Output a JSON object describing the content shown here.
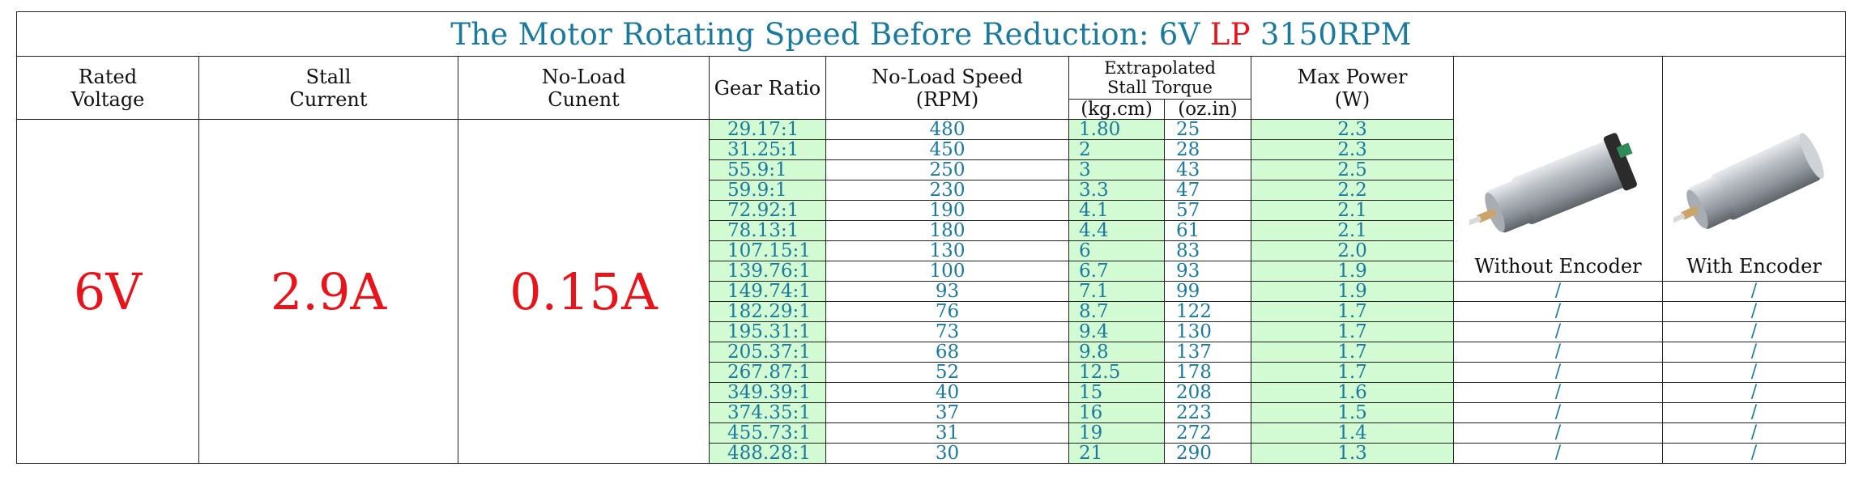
{
  "title": {
    "text_before": "The Motor Rotating Speed Before Reduction: 6V ",
    "lp": "LP",
    "text_after": " 3150RPM"
  },
  "headers": {
    "rated_voltage": "Rated Voltage",
    "stall_current": "Stall Current",
    "no_load_current": "No-Load Cunent",
    "gear_ratio": "Gear Ratio",
    "no_load_speed": "No-Load Speed (RPM)",
    "stall_torque": "Extrapolated Stall Torque",
    "torque_kgcm": "(kg.cm)",
    "torque_ozin": "(oz.in)",
    "max_power": "Max Power (W)",
    "without_encoder": "Without Encoder",
    "with_encoder": "With Encoder"
  },
  "values": {
    "rated_voltage": "6V",
    "stall_current": "2.9A",
    "no_load_current": "0.15A"
  },
  "rows": [
    {
      "ratio": "29.17:1",
      "speed": "480",
      "kg": "1.80",
      "oz": "25",
      "power": "2.3"
    },
    {
      "ratio": "31.25:1",
      "speed": "450",
      "kg": "2",
      "oz": "28",
      "power": "2.3"
    },
    {
      "ratio": "55.9:1",
      "speed": "250",
      "kg": "3",
      "oz": "43",
      "power": "2.5"
    },
    {
      "ratio": "59.9:1",
      "speed": "230",
      "kg": "3.3",
      "oz": "47",
      "power": "2.2"
    },
    {
      "ratio": "72.92:1",
      "speed": "190",
      "kg": "4.1",
      "oz": "57",
      "power": "2.1"
    },
    {
      "ratio": "78.13:1",
      "speed": "180",
      "kg": "4.4",
      "oz": "61",
      "power": "2.1"
    },
    {
      "ratio": "107.15:1",
      "speed": "130",
      "kg": "6",
      "oz": "83",
      "power": "2.0"
    },
    {
      "ratio": "139.76:1",
      "speed": "100",
      "kg": "6.7",
      "oz": "93",
      "power": "1.9"
    },
    {
      "ratio": "149.74:1",
      "speed": "93",
      "kg": "7.1",
      "oz": "99",
      "power": "1.9",
      "without": "/",
      "with": "/"
    },
    {
      "ratio": "182.29:1",
      "speed": "76",
      "kg": "8.7",
      "oz": "122",
      "power": "1.7",
      "without": "/",
      "with": "/"
    },
    {
      "ratio": "195.31:1",
      "speed": "73",
      "kg": "9.4",
      "oz": "130",
      "power": "1.7",
      "without": "/",
      "with": "/"
    },
    {
      "ratio": "205.37:1",
      "speed": "68",
      "kg": "9.8",
      "oz": "137",
      "power": "1.7",
      "without": "/",
      "with": "/"
    },
    {
      "ratio": "267.87:1",
      "speed": "52",
      "kg": "12.5",
      "oz": "178",
      "power": "1.7",
      "without": "/",
      "with": "/"
    },
    {
      "ratio": "349.39:1",
      "speed": "40",
      "kg": "15",
      "oz": "208",
      "power": "1.6",
      "without": "/",
      "with": "/"
    },
    {
      "ratio": "374.35:1",
      "speed": "37",
      "kg": "16",
      "oz": "223",
      "power": "1.5",
      "without": "/",
      "with": "/"
    },
    {
      "ratio": "455.73:1",
      "speed": "31",
      "kg": "19",
      "oz": "272",
      "power": "1.4",
      "without": "/",
      "with": "/"
    },
    {
      "ratio": "488.28:1",
      "speed": "30",
      "kg": "21",
      "oz": "290",
      "power": "1.3",
      "without": "/",
      "with": "/"
    }
  ],
  "colors": {
    "title_blue": "#1a7a9e",
    "accent_red": "#e8141c",
    "cell_green": "#d3fbd3"
  }
}
